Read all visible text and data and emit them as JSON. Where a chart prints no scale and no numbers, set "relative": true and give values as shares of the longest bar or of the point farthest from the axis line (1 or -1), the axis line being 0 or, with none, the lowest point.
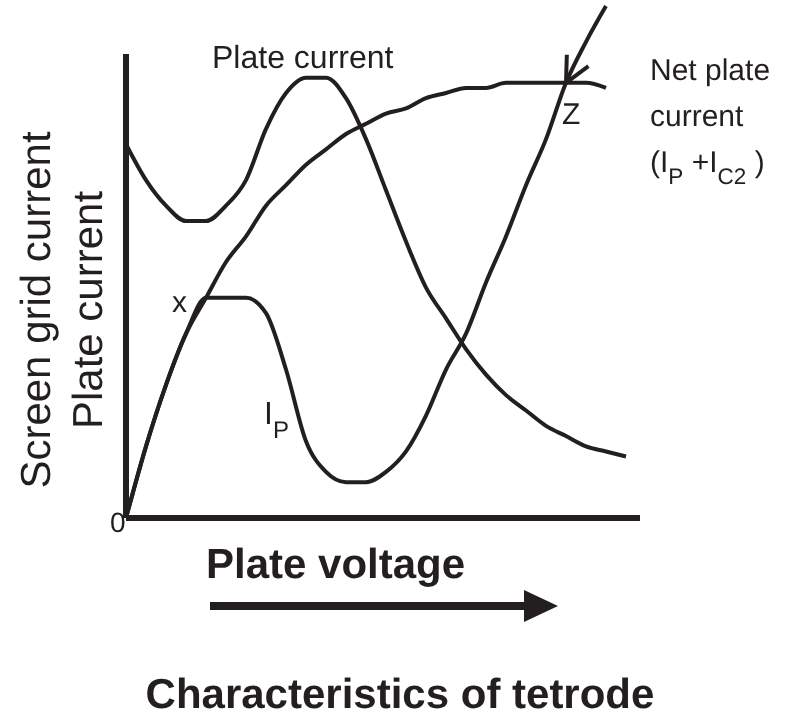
{
  "chart_data": {
    "type": "line",
    "title": "Characteristics of tetrode",
    "xlabel": "Plate voltage",
    "ylabel": "Screen grid current\nPlate current",
    "relative": true,
    "grid": false,
    "legend": "top right",
    "marker": "none",
    "line_style": "solid",
    "categories": [
      null,
      null,
      null,
      null,
      null,
      null,
      null,
      null,
      null,
      null,
      null,
      null,
      null,
      null,
      null,
      null,
      null,
      null,
      null,
      null,
      null,
      null,
      null,
      null,
      null,
      null
    ],
    "series": [
      {
        "name": "Plate current",
        "color": "#231f20",
        "values": [
          0.73,
          0.66,
          0.61,
          0.58,
          0.58,
          0.61,
          0.66,
          0.76,
          0.83,
          0.86,
          0.86,
          0.82,
          0.74,
          0.64,
          0.54,
          0.45,
          0.39,
          0.33,
          0.28,
          0.24,
          0.21,
          0.18,
          0.16,
          0.14,
          0.13,
          0.12
        ]
      },
      {
        "name": "I$_{P}$",
        "color": "#231f20",
        "values": [
          0,
          0.14,
          0.26,
          0.36,
          0.43,
          0.43,
          0.43,
          0.4,
          0.29,
          0.15,
          0.09,
          0.07,
          0.07,
          0.09,
          0.13,
          0.2,
          0.29,
          0.36,
          0.46,
          0.55,
          0.65,
          0.74,
          0.85,
          0.93,
          1.0,
          null
        ]
      },
      {
        "name": "Net plate\ncurrent\n(I$_{P}$ +I$_{C2}$ )",
        "color": "#231f20",
        "values": [
          0,
          0.14,
          0.26,
          0.36,
          0.43,
          0.5,
          0.55,
          0.61,
          0.65,
          0.69,
          0.72,
          0.75,
          0.77,
          0.79,
          0.8,
          0.82,
          0.83,
          0.84,
          0.84,
          0.85,
          0.85,
          0.85,
          0.85,
          0.85,
          0.84,
          null
        ]
      }
    ],
    "annotations": [
      "0",
      "x",
      "Z"
    ]
  }
}
